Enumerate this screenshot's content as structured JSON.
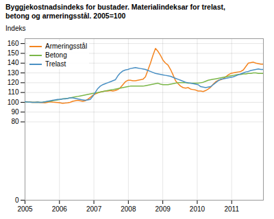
{
  "chart_data": {
    "type": "line",
    "title": "Byggjekostnadsindeks for bustader. Materialindeksar for trelast,",
    "subtitle": "betong og armeringsstål. 2005=100",
    "y_label": "Indeks",
    "x": [
      2005.0,
      2005.0728,
      2005.1457,
      2005.2185,
      2005.2914,
      2005.3642,
      2005.4371,
      2005.5099,
      2005.5827,
      2005.6556,
      2005.7284,
      2005.8013,
      2005.8741,
      2005.9469,
      2006.0198,
      2006.0926,
      2006.1655,
      2006.2383,
      2006.3112,
      2006.384,
      2006.4568,
      2006.5297,
      2006.6025,
      2006.6754,
      2006.7482,
      2006.8211,
      2006.8939,
      2006.9667,
      2007.0396,
      2007.1124,
      2007.1853,
      2007.2581,
      2007.3309,
      2007.4038,
      2007.4766,
      2007.5495,
      2007.6223,
      2007.6952,
      2007.768,
      2007.8408,
      2007.9137,
      2007.9865,
      2008.0594,
      2008.1322,
      2008.2051,
      2008.2779,
      2008.3507,
      2008.4236,
      2008.4964,
      2008.5693,
      2008.6421,
      2008.7149,
      2008.7878,
      2008.8606,
      2008.9335,
      2009.0063,
      2009.0792,
      2009.152,
      2009.2248,
      2009.2977,
      2009.3705,
      2009.4434,
      2009.5162,
      2009.5891,
      2009.6619,
      2009.7347,
      2009.8076,
      2009.8804,
      2009.9533,
      2010.0261,
      2010.0989,
      2010.1718,
      2010.2446,
      2010.3175,
      2010.3903,
      2010.4632,
      2010.536,
      2010.6088,
      2010.6817,
      2010.7545,
      2010.8274,
      2010.9002,
      2010.9731,
      2011.0459,
      2011.1187,
      2011.1916,
      2011.2644,
      2011.3373,
      2011.4101,
      2011.4829,
      2011.5558,
      2011.6286,
      2011.7015,
      2011.7743,
      2011.8472,
      2011.92
    ],
    "xlim": [
      2005.0,
      2011.92
    ],
    "xticks": [
      2005,
      2006,
      2007,
      2008,
      2009,
      2010,
      2011
    ],
    "ylim": [
      0,
      165
    ],
    "yticks": [
      0,
      80,
      90,
      100,
      110,
      120,
      130,
      140,
      150,
      160
    ],
    "grid": true,
    "legend": "upper left",
    "series": [
      {
        "name": "Armeringsstål",
        "color": "#F4841F",
        "values": [
          100.5,
          100.3,
          100.2,
          100.0,
          100.0,
          100.1,
          99.8,
          99.6,
          99.5,
          100.0,
          100.5,
          100.2,
          100.0,
          99.8,
          99.5,
          99.0,
          99.2,
          99.5,
          100.0,
          101.0,
          101.5,
          102.0,
          101.5,
          101.0,
          101.5,
          103.0,
          105.0,
          107.0,
          108.5,
          109.5,
          110.5,
          111.0,
          111.5,
          111.5,
          112.0,
          111.5,
          112.0,
          113.0,
          115.0,
          118.0,
          121.0,
          122.5,
          122.5,
          122.0,
          122.0,
          122.5,
          123.0,
          123.5,
          126.0,
          133.0,
          140.0,
          148.0,
          155.0,
          152.0,
          148.0,
          143.0,
          140.0,
          138.0,
          133.5,
          128.0,
          122.0,
          119.0,
          116.5,
          115.0,
          114.5,
          115.0,
          113.5,
          113.0,
          112.5,
          111.5,
          111.5,
          111.0,
          112.0,
          113.5,
          115.5,
          118.5,
          121.0,
          122.5,
          123.0,
          124.0,
          126.0,
          128.0,
          129.5,
          130.0,
          130.5,
          131.0,
          131.5,
          133.0,
          136.5,
          140.0,
          140.5,
          141.0,
          140.0,
          139.5,
          139.0,
          139.0
        ]
      },
      {
        "name": "Betong",
        "color": "#7ab648",
        "values": [
          100.5,
          100.3,
          100.2,
          100.0,
          100.0,
          100.1,
          100.0,
          100.2,
          100.5,
          100.8,
          101.0,
          101.5,
          102.0,
          102.5,
          103.0,
          103.5,
          103.8,
          104.0,
          104.5,
          105.0,
          105.5,
          106.0,
          106.5,
          107.0,
          107.5,
          108.0,
          108.5,
          109.0,
          109.5,
          110.0,
          110.5,
          111.0,
          111.5,
          112.0,
          112.5,
          113.0,
          113.5,
          114.0,
          114.5,
          115.0,
          115.5,
          116.0,
          116.5,
          116.5,
          116.5,
          116.5,
          116.5,
          116.5,
          117.0,
          117.5,
          118.0,
          118.5,
          119.0,
          119.5,
          118.5,
          118.0,
          118.0,
          118.0,
          118.5,
          119.0,
          119.5,
          120.0,
          120.0,
          120.0,
          120.0,
          119.5,
          119.5,
          119.5,
          119.5,
          119.5,
          120.0,
          120.5,
          121.5,
          122.5,
          123.0,
          123.5,
          124.0,
          124.5,
          125.0,
          125.5,
          126.0,
          126.5,
          127.0,
          127.5,
          128.0,
          128.5,
          128.5,
          129.0,
          129.0,
          129.5,
          129.5,
          130.0,
          130.0,
          129.5,
          129.5,
          129.5
        ]
      },
      {
        "name": "Trelast",
        "color": "#4a90c4",
        "values": [
          100.5,
          100.3,
          100.2,
          100.0,
          100.0,
          100.1,
          100.0,
          100.0,
          100.5,
          101.0,
          101.5,
          102.0,
          102.5,
          103.0,
          103.0,
          103.5,
          103.5,
          104.0,
          104.5,
          104.5,
          104.0,
          103.5,
          103.0,
          102.5,
          102.0,
          102.5,
          103.0,
          106.0,
          110.0,
          114.0,
          116.5,
          118.0,
          119.0,
          120.0,
          121.0,
          122.0,
          123.0,
          127.0,
          130.0,
          132.0,
          133.0,
          133.5,
          134.5,
          135.0,
          135.5,
          135.0,
          134.5,
          134.0,
          133.5,
          132.5,
          131.5,
          130.5,
          129.5,
          129.0,
          128.5,
          128.0,
          127.5,
          127.0,
          126.5,
          125.5,
          124.5,
          123.5,
          122.5,
          121.5,
          120.5,
          120.0,
          119.5,
          119.0,
          118.5,
          118.0,
          116.0,
          115.5,
          115.0,
          115.5,
          116.0,
          118.0,
          120.0,
          122.0,
          123.5,
          124.0,
          124.5,
          125.0,
          125.5,
          126.0,
          127.0,
          128.0,
          129.0,
          130.0,
          131.0,
          131.5,
          132.5,
          133.0,
          133.5,
          134.0,
          133.5,
          133.5
        ]
      }
    ]
  }
}
